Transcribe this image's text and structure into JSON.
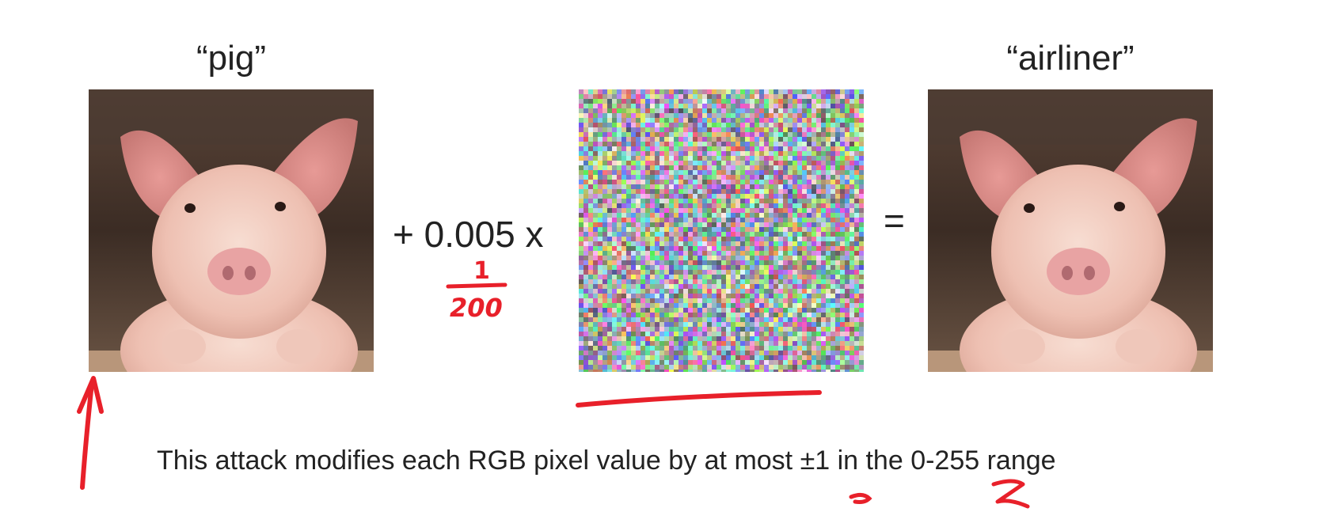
{
  "labels": {
    "left": "“pig”",
    "right": "“airliner”"
  },
  "operators": {
    "plus": "+ 0.005 x",
    "equals": "="
  },
  "caption": "This attack modifies each RGB pixel value by at most ±1 in the 0-255 range",
  "annotations": {
    "fraction_numerator": "1",
    "fraction_denominator": "200",
    "ink_color": "#e8202a"
  },
  "images": {
    "left": "pig-photo",
    "middle": "noise-pattern",
    "right": "pig-photo"
  }
}
